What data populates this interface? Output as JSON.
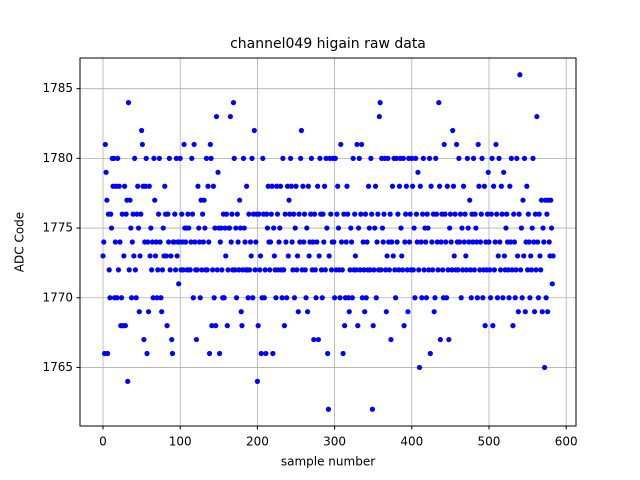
{
  "chart_data": {
    "type": "scatter",
    "title": "channel049 higain raw data",
    "x_label": "sample number",
    "y_label": "ADC Code",
    "color": "#0000ff",
    "grid": true,
    "xlim": [
      -29.8,
      612.7
    ],
    "xticks": [
      0,
      100,
      200,
      300,
      400,
      500,
      600
    ],
    "ylim": [
      1760.8,
      1787.2
    ],
    "yticks": [
      1765,
      1770,
      1775,
      1780,
      1785
    ],
    "values": [
      1773,
      1774,
      1766,
      1781,
      1779,
      1777,
      1766,
      1776,
      1772,
      1770,
      1776,
      1775,
      1780,
      1778,
      1780,
      1770,
      1774,
      1778,
      1770,
      1780,
      1772,
      1778,
      1774,
      1768,
      1770,
      1776,
      1768,
      1773,
      1778,
      1768,
      1776,
      1777,
      1764,
      1784,
      1772,
      1777,
      1775,
      1770,
      1774,
      1776,
      1773,
      1780,
      1772,
      1770,
      1776,
      1778,
      1775,
      1769,
      1773,
      1776,
      1782,
      1781,
      1778,
      1767,
      1774,
      1778,
      1780,
      1766,
      1774,
      1769,
      1778,
      1773,
      1775,
      1772,
      1774,
      1770,
      1780,
      1777,
      1773,
      1774,
      1770,
      1772,
      1776,
      1780,
      1774,
      1770,
      1769,
      1772,
      1775,
      1773,
      1778,
      1776,
      1773,
      1768,
      1776,
      1774,
      1780,
      1772,
      1773,
      1767,
      1766,
      1774,
      1774,
      1776,
      1772,
      1780,
      1773,
      1774,
      1771,
      1774,
      1780,
      1772,
      1776,
      1774,
      1772,
      1781,
      1775,
      1774,
      1775,
      1772,
      1776,
      1775,
      1772,
      1772,
      1774,
      1780,
      1776,
      1770,
      1781,
      1774,
      1772,
      1767,
      1772,
      1778,
      1775,
      1774,
      1770,
      1777,
      1772,
      1776,
      1774,
      1777,
      1775,
      1772,
      1780,
      1772,
      1778,
      1774,
      1766,
      1781,
      1780,
      1768,
      1772,
      1778,
      1770,
      1775,
      1768,
      1783,
      1772,
      1779,
      1775,
      1766,
      1774,
      1775,
      1772,
      1770,
      1776,
      1770,
      1775,
      1773,
      1776,
      1768,
      1772,
      1775,
      1775,
      1783,
      1774,
      1776,
      1772,
      1784,
      1780,
      1772,
      1775,
      1770,
      1776,
      1774,
      1772,
      1777,
      1775,
      1769,
      1768,
      1772,
      1780,
      1775,
      1774,
      1772,
      1778,
      1772,
      1770,
      1776,
      1772,
      1774,
      1773,
      1780,
      1770,
      1776,
      1782,
      1772,
      1774,
      1776,
      1764,
      1768,
      1776,
      1772,
      1773,
      1766,
      1770,
      1780,
      1776,
      1770,
      1772,
      1766,
      1776,
      1775,
      1778,
      1774,
      1772,
      1774,
      1776,
      1778,
      1766,
      1775,
      1773,
      1772,
      1770,
      1778,
      1776,
      1772,
      1774,
      1775,
      1778,
      1772,
      1770,
      1780,
      1772,
      1768,
      1776,
      1774,
      1770,
      1778,
      1773,
      1777,
      1776,
      1780,
      1778,
      1774,
      1772,
      1776,
      1770,
      1775,
      1778,
      1772,
      1773,
      1769,
      1776,
      1774,
      1780,
      1782,
      1772,
      1778,
      1774,
      1776,
      1772,
      1770,
      1775,
      1769,
      1778,
      1773,
      1774,
      1776,
      1780,
      1772,
      1774,
      1767,
      1776,
      1772,
      1770,
      1774,
      1778,
      1767,
      1773,
      1780,
      1776,
      1772,
      1770,
      1776,
      1774,
      1778,
      1772,
      1780,
      1775,
      1766,
      1762,
      1773,
      1780,
      1776,
      1772,
      1774,
      1780,
      1774,
      1770,
      1780,
      1772,
      1776,
      1778,
      1775,
      1772,
      1770,
      1781,
      1774,
      1772,
      1766,
      1776,
      1768,
      1770,
      1774,
      1778,
      1776,
      1770,
      1769,
      1772,
      1775,
      1774,
      1770,
      1780,
      1772,
      1776,
      1773,
      1772,
      1781,
      1768,
      1775,
      1780,
      1772,
      1776,
      1781,
      1770,
      1774,
      1772,
      1769,
      1776,
      1770,
      1774,
      1772,
      1778,
      1775,
      1772,
      1780,
      1776,
      1762,
      1768,
      1772,
      1775,
      1778,
      1770,
      1774,
      1776,
      1772,
      1783,
      1784,
      1772,
      1780,
      1775,
      1774,
      1776,
      1780,
      1772,
      1769,
      1773,
      1780,
      1774,
      1772,
      1776,
      1767,
      1774,
      1778,
      1773,
      1780,
      1772,
      1770,
      1780,
      1774,
      1776,
      1772,
      1778,
      1780,
      1775,
      1773,
      1772,
      1780,
      1768,
      1774,
      1776,
      1778,
      1772,
      1769,
      1780,
      1774,
      1776,
      1772,
      1780,
      1778,
      1772,
      1775,
      1770,
      1780,
      1776,
      1774,
      1779,
      1772,
      1765,
      1778,
      1774,
      1770,
      1776,
      1780,
      1772,
      1775,
      1774,
      1770,
      1776,
      1775,
      1772,
      1780,
      1766,
      1778,
      1774,
      1772,
      1776,
      1769,
      1770,
      1780,
      1776,
      1774,
      1772,
      1784,
      1778,
      1767,
      1774,
      1776,
      1772,
      1770,
      1781,
      1776,
      1774,
      1770,
      1778,
      1772,
      1767,
      1775,
      1776,
      1774,
      1772,
      1782,
      1778,
      1773,
      1776,
      1772,
      1781,
      1774,
      1772,
      1780,
      1774,
      1776,
      1770,
      1775,
      1772,
      1778,
      1774,
      1776,
      1773,
      1772,
      1780,
      1775,
      1774,
      1777,
      1772,
      1770,
      1776,
      1774,
      1780,
      1772,
      1776,
      1775,
      1774,
      1770,
      1781,
      1778,
      1772,
      1774,
      1776,
      1780,
      1770,
      1772,
      1778,
      1768,
      1774,
      1772,
      1776,
      1779,
      1774,
      1772,
      1770,
      1776,
      1780,
      1768,
      1778,
      1772,
      1774,
      1781,
      1776,
      1770,
      1773,
      1780,
      1774,
      1772,
      1778,
      1776,
      1770,
      1779,
      1773,
      1772,
      1775,
      1776,
      1774,
      1772,
      1770,
      1778,
      1774,
      1780,
      1772,
      1768,
      1776,
      1774,
      1770,
      1772,
      1780,
      1773,
      1769,
      1776,
      1786,
      1772,
      1775,
      1770,
      1777,
      1773,
      1780,
      1769,
      1774,
      1778,
      1772,
      1776,
      1774,
      1770,
      1773,
      1772,
      1775,
      1780,
      1774,
      1769,
      1776,
      1772,
      1783,
      1774,
      1770,
      1776,
      1773,
      1772,
      1777,
      1769,
      1775,
      1774,
      1765,
      1777,
      1770,
      1776,
      1769,
      1777,
      1774,
      1773,
      1777,
      1775,
      1771,
      1773
    ]
  }
}
